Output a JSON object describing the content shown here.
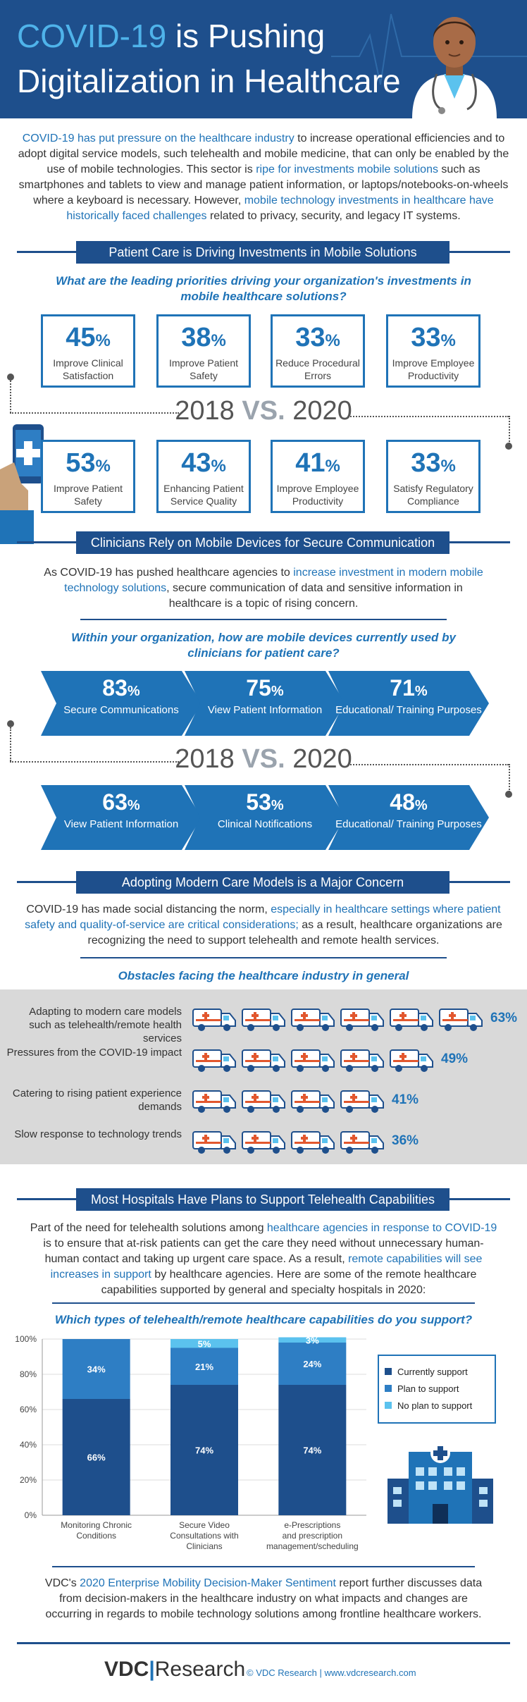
{
  "header": {
    "title_accent": "COVID-19",
    "title_rest": " is Pushing",
    "title_line2": "Digitalization in Healthcare"
  },
  "intro": {
    "p1": "COVID-19 has put pressure on the healthcare industry",
    "p2": " to increase operational efficiencies and to adopt digital service models, such telehealth and mobile medicine, that can only be enabled by the use of mobile technologies. This sector is ",
    "p3": "ripe for investments mobile solutions",
    "p4": " such as smartphones and tablets to view and manage patient information, or laptops/notebooks-on-wheels where a keyboard is necessary. However, ",
    "p5": "mobile technology investments in healthcare have historically faced challenges",
    "p6": " related to privacy, security, and legacy IT systems."
  },
  "section1": {
    "banner": "Patient Care is Driving Investments in Mobile Solutions",
    "question": "What are the leading priorities driving your organization's investments in mobile healthcare solutions?",
    "row2018": [
      {
        "value": "45",
        "label": "Improve Clinical Satisfaction"
      },
      {
        "value": "38",
        "label": "Improve Patient Safety"
      },
      {
        "value": "33",
        "label": "Reduce Procedural Errors"
      },
      {
        "value": "33",
        "label": "Improve Employee Productivity"
      }
    ],
    "row2020": [
      {
        "value": "53",
        "label": "Improve Patient Safety"
      },
      {
        "value": "43",
        "label": "Enhancing Patient Service Quality"
      },
      {
        "value": "41",
        "label": "Improve Employee Productivity"
      },
      {
        "value": "33",
        "label": "Satisfy Regulatory Compliance"
      }
    ]
  },
  "vs": {
    "y1": "2018",
    "v": "VS.",
    "y2": "2020"
  },
  "pct": "%",
  "section2": {
    "banner": "Clinicians Rely on Mobile Devices for Secure Communication",
    "intro_a": "As COVID-19 has pushed healthcare agencies to ",
    "intro_b": "increase investment in modern mobile technology solutions",
    "intro_c": ", secure communication of data and sensitive information in healthcare is a topic of rising concern.",
    "question": "Within your organization, how are mobile devices currently used by clinicians for patient care?",
    "row2018": [
      {
        "value": "83",
        "label": "Secure Communications"
      },
      {
        "value": "75",
        "label": "View Patient Information"
      },
      {
        "value": "71",
        "label": "Educational/ Training Purposes"
      }
    ],
    "row2020": [
      {
        "value": "63",
        "label": "View Patient Information"
      },
      {
        "value": "53",
        "label": "Clinical Notifications"
      },
      {
        "value": "48",
        "label": "Educational/ Training Purposes"
      }
    ]
  },
  "section3": {
    "banner": "Adopting Modern Care Models is a Major Concern",
    "intro_a": "COVID-19 has made social distancing the norm, ",
    "intro_b": "especially in healthcare settings where patient safety and quality-of-service are critical considerations;",
    "intro_c": " as a result, healthcare organizations are recognizing the need to support telehealth and remote health services.",
    "question": "Obstacles facing the healthcare industry in general",
    "rows": [
      {
        "label": "Adapting to modern care models such as telehealth/remote health services",
        "value": 63,
        "display": "63%"
      },
      {
        "label": "Pressures from the COVID-19 impact",
        "value": 49,
        "display": "49%"
      },
      {
        "label": "Catering to rising patient experience demands",
        "value": 41,
        "display": "41%"
      },
      {
        "label": "Slow response to technology trends",
        "value": 36,
        "display": "36%"
      }
    ]
  },
  "section4": {
    "banner": "Most Hospitals Have Plans to Support Telehealth Capabilities",
    "intro_a": "Part of the need for telehealth solutions among ",
    "intro_b": "healthcare agencies in response to COVID-19",
    "intro_c": " is to ensure that at-risk patients can get the care they need without unnecessary human-human contact and taking up urgent care space. As a result, ",
    "intro_d": "remote capabilities will see increases in support",
    "intro_e": " by healthcare agencies. Here are some of the remote healthcare capabilities supported by general and specialty hospitals in 2020:",
    "question": "Which types of telehealth/remote healthcare capabilities do you support?"
  },
  "chart_data": {
    "type": "bar",
    "stacked": true,
    "categories": [
      "Monitoring Chronic Conditions",
      "Secure Video Consultations with Clinicians",
      "e-Prescriptions and prescription management/scheduling"
    ],
    "series": [
      {
        "name": "Currently support",
        "values": [
          66,
          74,
          74
        ],
        "color": "#1e4f8c"
      },
      {
        "name": "Plan to support",
        "values": [
          34,
          21,
          24
        ],
        "color": "#2e7ec4"
      },
      {
        "name": "No plan to support",
        "values": [
          0,
          5,
          3
        ],
        "color": "#5bc2ee"
      }
    ],
    "data_labels": [
      [
        "66%",
        "34%",
        ""
      ],
      [
        "74%",
        "21%",
        "5%"
      ],
      [
        "74%",
        "24%",
        "3%"
      ]
    ],
    "yticks": [
      "0%",
      "20%",
      "40%",
      "60%",
      "80%",
      "100%"
    ],
    "ylim": [
      0,
      100
    ],
    "legend": "right"
  },
  "footer": {
    "a": "VDC's ",
    "b": "2020 Enterprise Mobility Decision-Maker Sentiment",
    "c": " report further discusses data from decision-makers in the healthcare industry on what impacts and changes are occurring in regards to mobile technology solutions among frontline healthcare workers.",
    "brand_a": "VDC",
    "brand_b": "Research",
    "copyright": "© VDC Research | www.vdcresearch.com"
  },
  "colors": {
    "navy": "#1e4f8c",
    "blue": "#1f73b7",
    "light": "#5bc2ee"
  }
}
